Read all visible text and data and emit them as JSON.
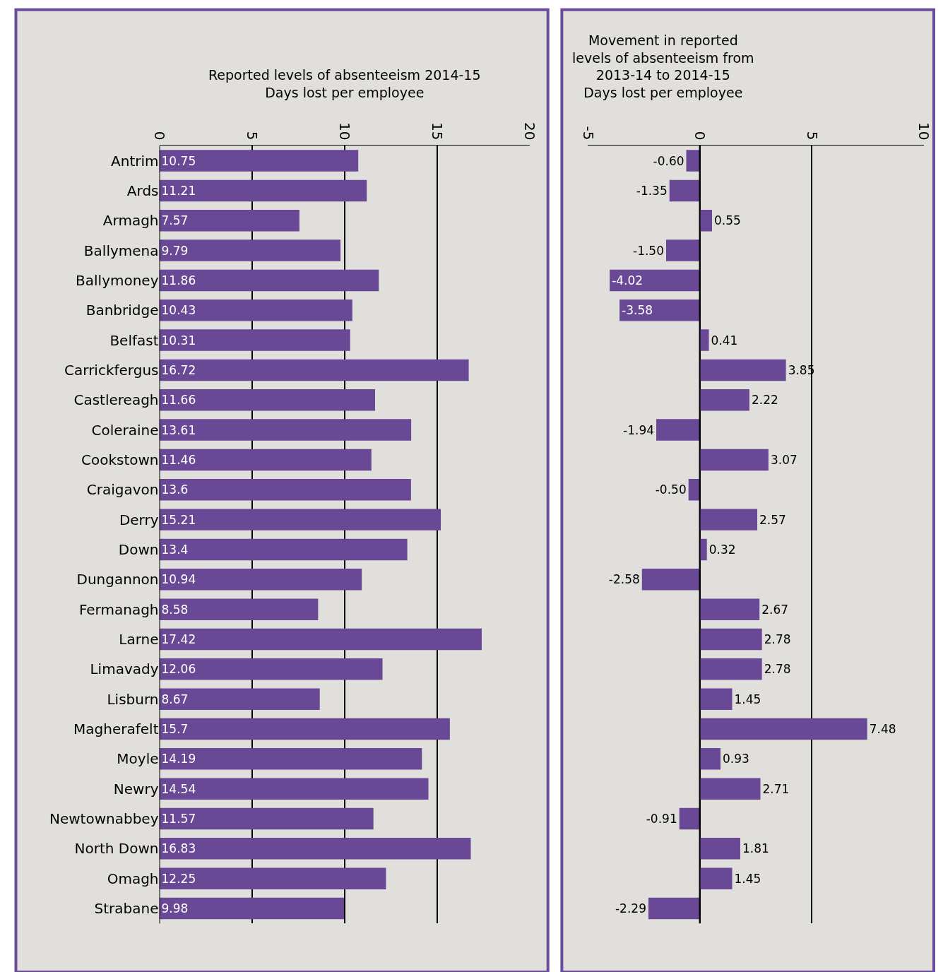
{
  "chart_data": [
    {
      "type": "bar",
      "orientation": "horizontal",
      "title": "Reported levels of absenteeism 2014-15\nDays lost per employee",
      "categories": [
        "Antrim",
        "Ards",
        "Armagh",
        "Ballymena",
        "Ballymoney",
        "Banbridge",
        "Belfast",
        "Carrickfergus",
        "Castlereagh",
        "Coleraine",
        "Cookstown",
        "Craigavon",
        "Derry",
        "Down",
        "Dungannon",
        "Fermanagh",
        "Larne",
        "Limavady",
        "Lisburn",
        "Magherafelt",
        "Moyle",
        "Newry",
        "Newtownabbey",
        "North Down",
        "Omagh",
        "Strabane"
      ],
      "values": [
        10.75,
        11.21,
        7.57,
        9.79,
        11.86,
        10.43,
        10.31,
        16.72,
        11.66,
        13.61,
        11.46,
        13.6,
        15.21,
        13.4,
        10.94,
        8.58,
        17.42,
        12.06,
        8.67,
        15.7,
        14.19,
        14.54,
        11.57,
        16.83,
        12.25,
        9.98
      ],
      "color": "#694896",
      "xlim": [
        0,
        20
      ],
      "xticks": [
        0,
        5,
        10,
        15,
        20
      ],
      "grid": "x",
      "data_labels": true
    },
    {
      "type": "bar",
      "orientation": "horizontal",
      "title": "Movement in reported\nlevels of absenteeism from\n2013-14 to 2014-15\nDays lost per employee",
      "categories": [
        null,
        null,
        null,
        null,
        null,
        null,
        null,
        null,
        null,
        null,
        null,
        null,
        null,
        null,
        null,
        null,
        null,
        null,
        null,
        null,
        null,
        null,
        null,
        null,
        null,
        null
      ],
      "values": [
        -0.6,
        -1.35,
        0.55,
        -1.5,
        -4.02,
        -3.58,
        0.41,
        3.85,
        2.22,
        -1.94,
        3.07,
        -0.5,
        2.57,
        0.32,
        -2.58,
        2.67,
        2.78,
        2.78,
        1.45,
        7.48,
        0.93,
        2.71,
        -0.91,
        1.81,
        1.45,
        -2.29
      ],
      "value_labels": [
        "-0.60",
        "-1.35",
        "0.55",
        "-1.50",
        "-4.02",
        "-3.58",
        "0.41",
        "3.85",
        "2.22",
        "-1.94",
        "3.07",
        "-0.50",
        "2.57",
        "0.32",
        "-2.58",
        "2.67",
        "2.78",
        "2.78",
        "1.45",
        "7.48",
        "0.93",
        "2.71",
        "-0.91",
        "1.81",
        "1.45",
        "-2.29"
      ],
      "color": "#694896",
      "xlim": [
        -5,
        10
      ],
      "xticks": [
        -5,
        0,
        5,
        10
      ],
      "grid": "x",
      "tick_labels": "x"
    }
  ]
}
